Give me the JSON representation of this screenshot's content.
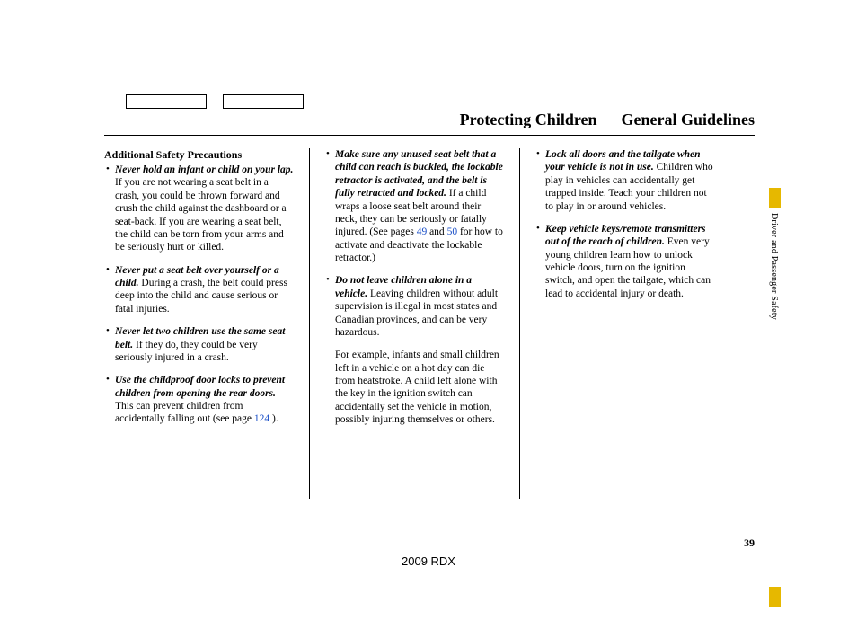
{
  "header": {
    "left": "Protecting Children",
    "right": "General Guidelines"
  },
  "section_title": "Additional Safety Precautions",
  "col1": {
    "items": [
      {
        "bold": "Never hold an infant or child on your lap.",
        "text": " If you are not wearing a seat belt in a crash, you could be thrown forward and crush the child against the dashboard or a seat-back. If you are wearing a seat belt, the child can be torn from your arms and be seriously hurt or killed."
      },
      {
        "bold": "Never put a seat belt over yourself or a child.",
        "text": " During a crash, the belt could press deep into the child and cause serious or fatal injuries."
      },
      {
        "bold": "Never let two children use the same seat belt.",
        "text": " If they do, they could be very seriously injured in a crash."
      },
      {
        "bold": "Use the childproof door locks to prevent children from opening the rear doors.",
        "text_before": " This can prevent children from accidentally falling out (see page ",
        "link": "124",
        "text_after": " )."
      }
    ]
  },
  "col2": {
    "items": [
      {
        "bold": "Make sure any unused seat belt that a child can reach is buckled, the lockable retractor is activated, and the belt is fully retracted and locked.",
        "text_before": " If a child wraps a loose seat belt around their neck, they can be seriously or fatally injured. (See pages ",
        "link1": "49",
        "mid": " and ",
        "link2": "50",
        "text_after": " for how to activate and deactivate the lockable retractor.)"
      },
      {
        "bold": "Do not leave children alone in a vehicle.",
        "text": " Leaving children without adult supervision is illegal in most states and Canadian provinces, and can be very hazardous."
      }
    ],
    "para": "For example, infants and small children left in a vehicle on a hot day can die from heatstroke. A child left alone with the key in the ignition switch can accidentally set the vehicle in motion, possibly injuring themselves or others."
  },
  "col3": {
    "items": [
      {
        "bold": "Lock all doors and the tailgate when your vehicle is not in use.",
        "text": " Children who play in vehicles can accidentally get trapped inside. Teach your children not to play in or around vehicles."
      },
      {
        "bold": "Keep vehicle keys/remote transmitters out of the reach of children.",
        "text": " Even very young children learn how to unlock vehicle doors, turn on the ignition switch, and open the tailgate, which can lead to accidental injury or death."
      }
    ]
  },
  "side_label": "Driver and Passenger Safety",
  "page_number": "39",
  "footer": "2009  RDX"
}
